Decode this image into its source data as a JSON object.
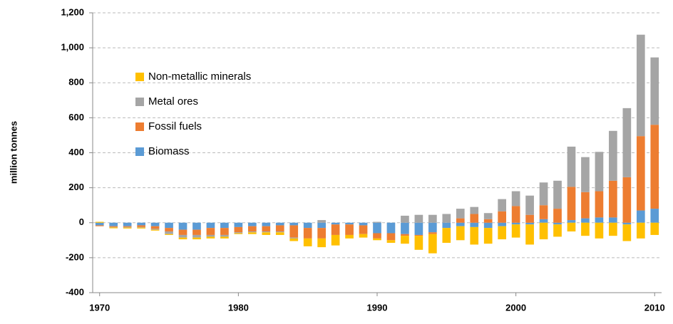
{
  "chart_data": {
    "type": "bar",
    "stacked": true,
    "y_label": "million tonnes",
    "x": [
      1970,
      1971,
      1972,
      1973,
      1974,
      1975,
      1976,
      1977,
      1978,
      1979,
      1980,
      1981,
      1982,
      1983,
      1984,
      1985,
      1986,
      1987,
      1988,
      1989,
      1990,
      1991,
      1992,
      1993,
      1994,
      1995,
      1996,
      1997,
      1998,
      1999,
      2000,
      2001,
      2002,
      2003,
      2004,
      2005,
      2006,
      2007,
      2008,
      2009,
      2010
    ],
    "xlim": [
      1969.5,
      2010.5
    ],
    "xticks": [
      1970,
      1980,
      1990,
      2000,
      2010
    ],
    "ylim": [
      -400,
      1200
    ],
    "yticks": [
      -400,
      -200,
      0,
      200,
      400,
      600,
      800,
      {
        "value": 1000,
        "label": "1,000"
      },
      {
        "value": 1200,
        "label": "1,200"
      }
    ],
    "grid": true,
    "legend": "upper left",
    "series": [
      {
        "name": "Non-metallic minerals",
        "color": "#ffc000",
        "values": [
          5,
          -5,
          -5,
          -5,
          -5,
          -5,
          -10,
          -10,
          -10,
          -10,
          -5,
          -10,
          -15,
          -15,
          -15,
          -45,
          -50,
          -60,
          -20,
          -20,
          -10,
          -15,
          -45,
          -80,
          -110,
          -85,
          -80,
          -100,
          -90,
          -75,
          -75,
          -115,
          -95,
          -70,
          -50,
          -75,
          -90,
          -75,
          -95,
          -90,
          -70
        ]
      },
      {
        "name": "Metal ores",
        "color": "#a5a5a5",
        "values": [
          0,
          -2,
          -3,
          -3,
          -5,
          -15,
          -15,
          -15,
          -10,
          -10,
          -5,
          -5,
          -5,
          -5,
          -5,
          0,
          15,
          0,
          0,
          0,
          5,
          0,
          40,
          45,
          45,
          50,
          55,
          40,
          35,
          70,
          85,
          110,
          130,
          160,
          230,
          200,
          225,
          285,
          395,
          580,
          385
        ]
      },
      {
        "name": "Fossil fuels",
        "color": "#ed7d31",
        "values": [
          -5,
          -5,
          -5,
          -10,
          -15,
          -20,
          -30,
          -30,
          -40,
          -40,
          -30,
          -30,
          -30,
          -35,
          -70,
          -60,
          -60,
          -60,
          -60,
          -50,
          -30,
          -40,
          -10,
          -5,
          -10,
          0,
          25,
          50,
          20,
          65,
          95,
          45,
          80,
          80,
          190,
          150,
          150,
          210,
          260,
          425,
          480
        ]
      },
      {
        "name": "Biomass",
        "color": "#5b9bd5",
        "values": [
          -15,
          -20,
          -20,
          -15,
          -20,
          -30,
          -40,
          -40,
          -30,
          -30,
          -25,
          -20,
          -20,
          -15,
          -15,
          -30,
          -30,
          -10,
          -10,
          -15,
          -60,
          -60,
          -65,
          -70,
          -55,
          -30,
          -20,
          -25,
          -30,
          -20,
          -10,
          -10,
          20,
          -10,
          15,
          25,
          30,
          30,
          -10,
          70,
          80
        ]
      }
    ]
  }
}
